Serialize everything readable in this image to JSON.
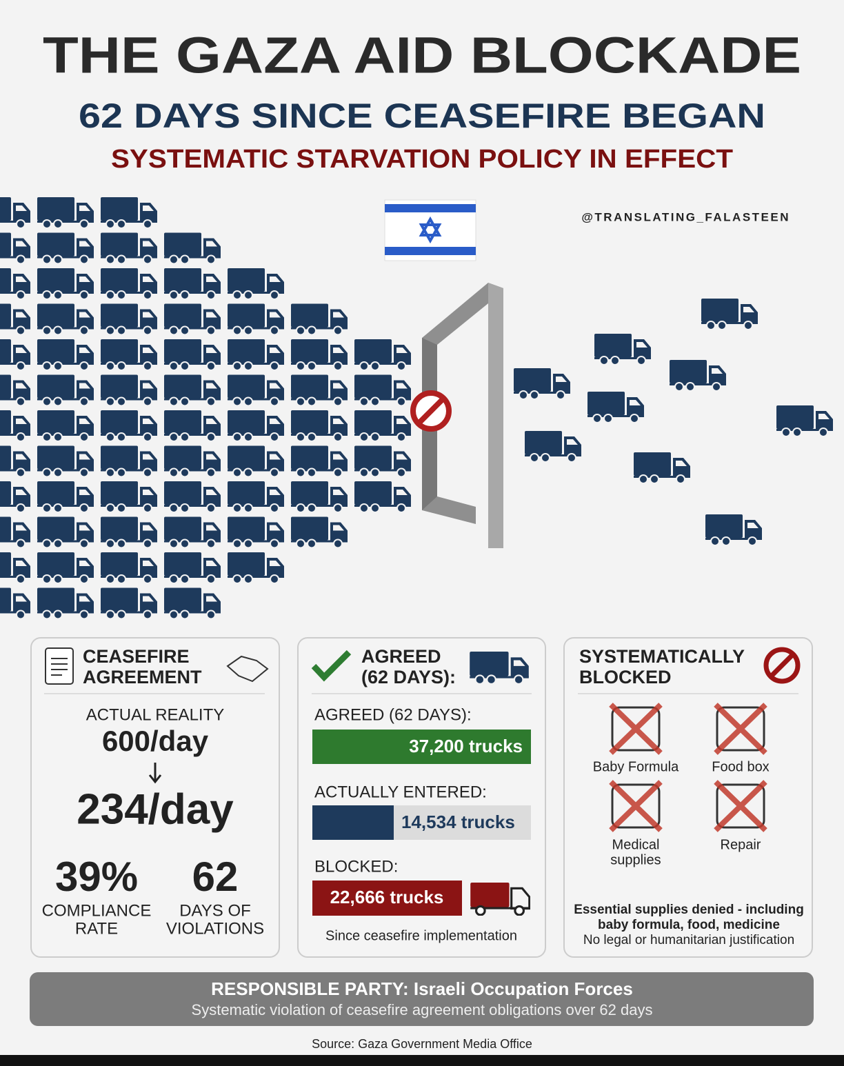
{
  "header": {
    "title": "THE GAZA AID BLOCKADE",
    "subtitle": "62 DAYS SINCE CEASEFIRE BEGAN",
    "tagline": "SYSTEMATIC STARVATION POLICY IN EFFECT",
    "handle": "@TRANSLATING_FALASTEEN"
  },
  "panels": [
    {
      "heading": [
        "CEASEFIRE",
        "AGREEMENT"
      ],
      "label": "ACTUAL REALITY",
      "from": "600/day",
      "to": "234/day",
      "stats": [
        {
          "value": "39%",
          "label": [
            "COMPLIANCE",
            "RATE"
          ]
        },
        {
          "value": "62",
          "label": [
            "DAYS OF",
            "VIOLATIONS"
          ]
        }
      ]
    },
    {
      "heading": [
        "AGREED",
        "(62 DAYS):"
      ],
      "rows": [
        {
          "label": "AGREED (62 DAYS):",
          "value": "37,200 trucks"
        },
        {
          "label": "ACTUALLY ENTERED:",
          "value": "14,534 trucks"
        },
        {
          "label": "BLOCKED:",
          "value": "22,666 trucks"
        }
      ],
      "note": "Since ceasefire implementation"
    },
    {
      "heading": [
        "SYSTEMATICALLY",
        "BLOCKED"
      ],
      "items": [
        [
          "Baby Formula"
        ],
        [
          "Food box"
        ],
        [
          "Medical",
          "supplies"
        ],
        [
          "Repair"
        ]
      ],
      "note": [
        "Essential supplies denied - including",
        "baby formula, food, medicine",
        "No legal or humanitarian justification"
      ]
    }
  ],
  "footer": {
    "label": "RESPONSIBLE PARTY:",
    "party": "Israeli Occupation Forces",
    "detail": "Systematic violation of ceasefire agreement obligations over 62 days"
  },
  "source": "Source: Gaza Government Media Office"
}
